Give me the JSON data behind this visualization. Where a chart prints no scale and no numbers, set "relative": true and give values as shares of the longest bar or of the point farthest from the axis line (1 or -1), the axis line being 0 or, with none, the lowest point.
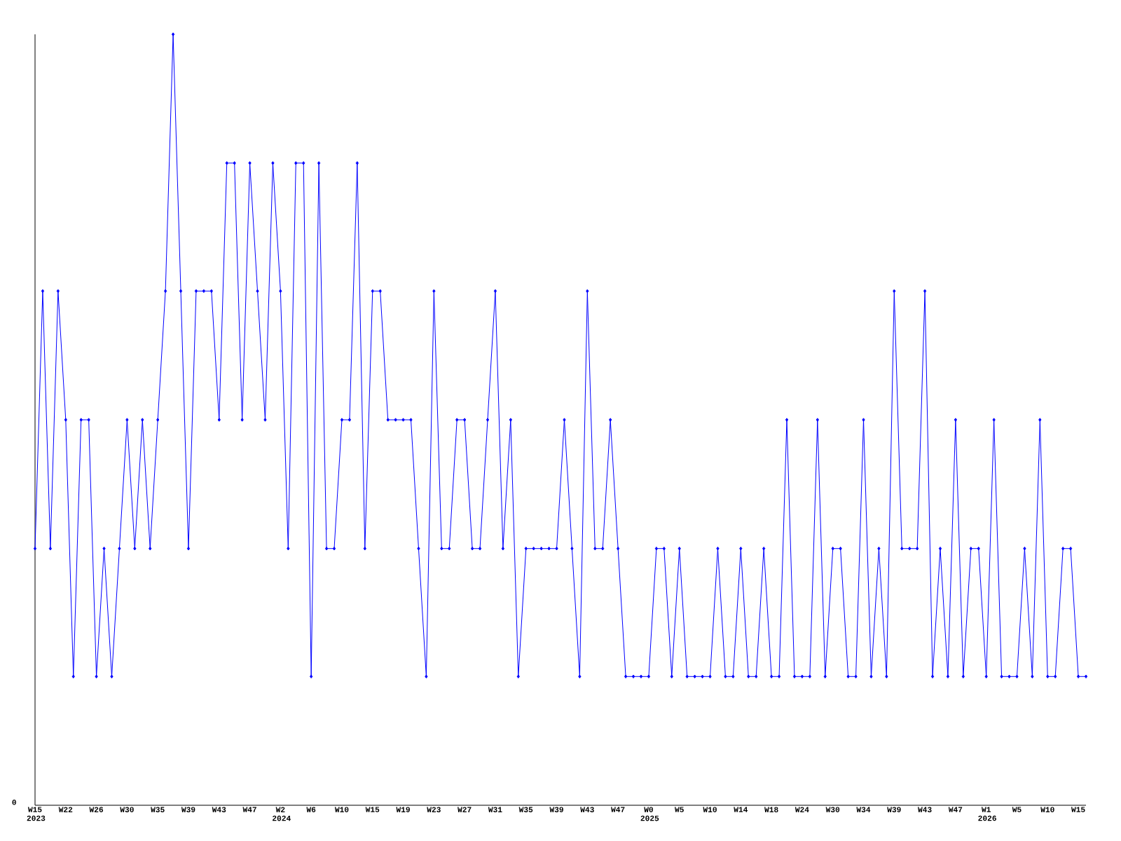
{
  "chart_data": {
    "type": "line",
    "relative": true,
    "color": "#0000ff",
    "marker": "diamond",
    "line_style": "solid",
    "categories": [
      "W15 2023",
      null,
      null,
      null,
      "W22",
      null,
      null,
      null,
      "W26",
      null,
      null,
      null,
      "W30",
      null,
      null,
      null,
      "W35",
      null,
      null,
      null,
      "W39",
      null,
      null,
      null,
      "W43",
      null,
      null,
      null,
      "W47",
      null,
      null,
      null,
      "W2 2024",
      null,
      null,
      null,
      "W6",
      null,
      null,
      null,
      "W10",
      null,
      null,
      null,
      "W15",
      null,
      null,
      null,
      "W19",
      null,
      null,
      null,
      "W23",
      null,
      null,
      null,
      "W27",
      null,
      null,
      null,
      "W31",
      null,
      null,
      null,
      "W35",
      null,
      null,
      null,
      "W39",
      null,
      null,
      null,
      "W43",
      null,
      null,
      null,
      "W47",
      null,
      null,
      null,
      "W0 2025",
      null,
      null,
      null,
      "W5",
      null,
      null,
      null,
      "W10",
      null,
      null,
      null,
      "W14",
      null,
      null,
      null,
      "W18",
      null,
      null,
      null,
      "W24",
      null,
      null,
      null,
      "W30",
      null,
      null,
      null,
      "W34",
      null,
      null,
      null,
      "W39",
      null,
      null,
      null,
      "W43",
      null,
      null,
      null,
      "W47",
      null,
      null,
      null,
      "W1 2026",
      null,
      null,
      null,
      "W5",
      null,
      null,
      null,
      "W10",
      null,
      null,
      null,
      "W15",
      null
    ],
    "values": [
      0.333,
      0.667,
      0.333,
      0.667,
      0.5,
      0.167,
      0.5,
      0.5,
      0.167,
      0.333,
      0.167,
      0.333,
      0.5,
      0.333,
      0.5,
      0.333,
      0.5,
      0.667,
      1,
      0.667,
      0.333,
      0.667,
      0.667,
      0.667,
      0.5,
      0.833,
      0.833,
      0.5,
      0.833,
      0.667,
      0.5,
      0.833,
      0.667,
      0.333,
      0.833,
      0.833,
      0.167,
      0.833,
      0.333,
      0.333,
      0.5,
      0.5,
      0.833,
      0.333,
      0.667,
      0.667,
      0.5,
      0.5,
      0.5,
      0.5,
      0.333,
      0.167,
      0.667,
      0.333,
      0.333,
      0.5,
      0.5,
      0.333,
      0.333,
      0.5,
      0.667,
      0.333,
      0.5,
      0.167,
      0.333,
      0.333,
      0.333,
      0.333,
      0.333,
      0.5,
      0.333,
      0.167,
      0.667,
      0.333,
      0.333,
      0.5,
      0.333,
      0.167,
      0.167,
      0.167,
      0.167,
      0.333,
      0.333,
      0.167,
      0.333,
      0.167,
      0.167,
      0.167,
      0.167,
      0.333,
      0.167,
      0.167,
      0.333,
      0.167,
      0.167,
      0.333,
      0.167,
      0.167,
      0.5,
      0.167,
      0.167,
      0.167,
      0.5,
      0.167,
      0.333,
      0.333,
      0.167,
      0.167,
      0.5,
      0.167,
      0.333,
      0.167,
      0.667,
      0.333,
      0.333,
      0.333,
      0.667,
      0.167,
      0.333,
      0.167,
      0.5,
      0.167,
      0.333,
      0.333,
      0.167,
      0.5,
      0.167,
      0.167,
      0.167,
      0.333,
      0.167,
      0.5,
      0.167,
      0.167,
      0.333,
      0.333,
      0.167,
      0.167
    ],
    "annotations": [
      "0"
    ]
  }
}
